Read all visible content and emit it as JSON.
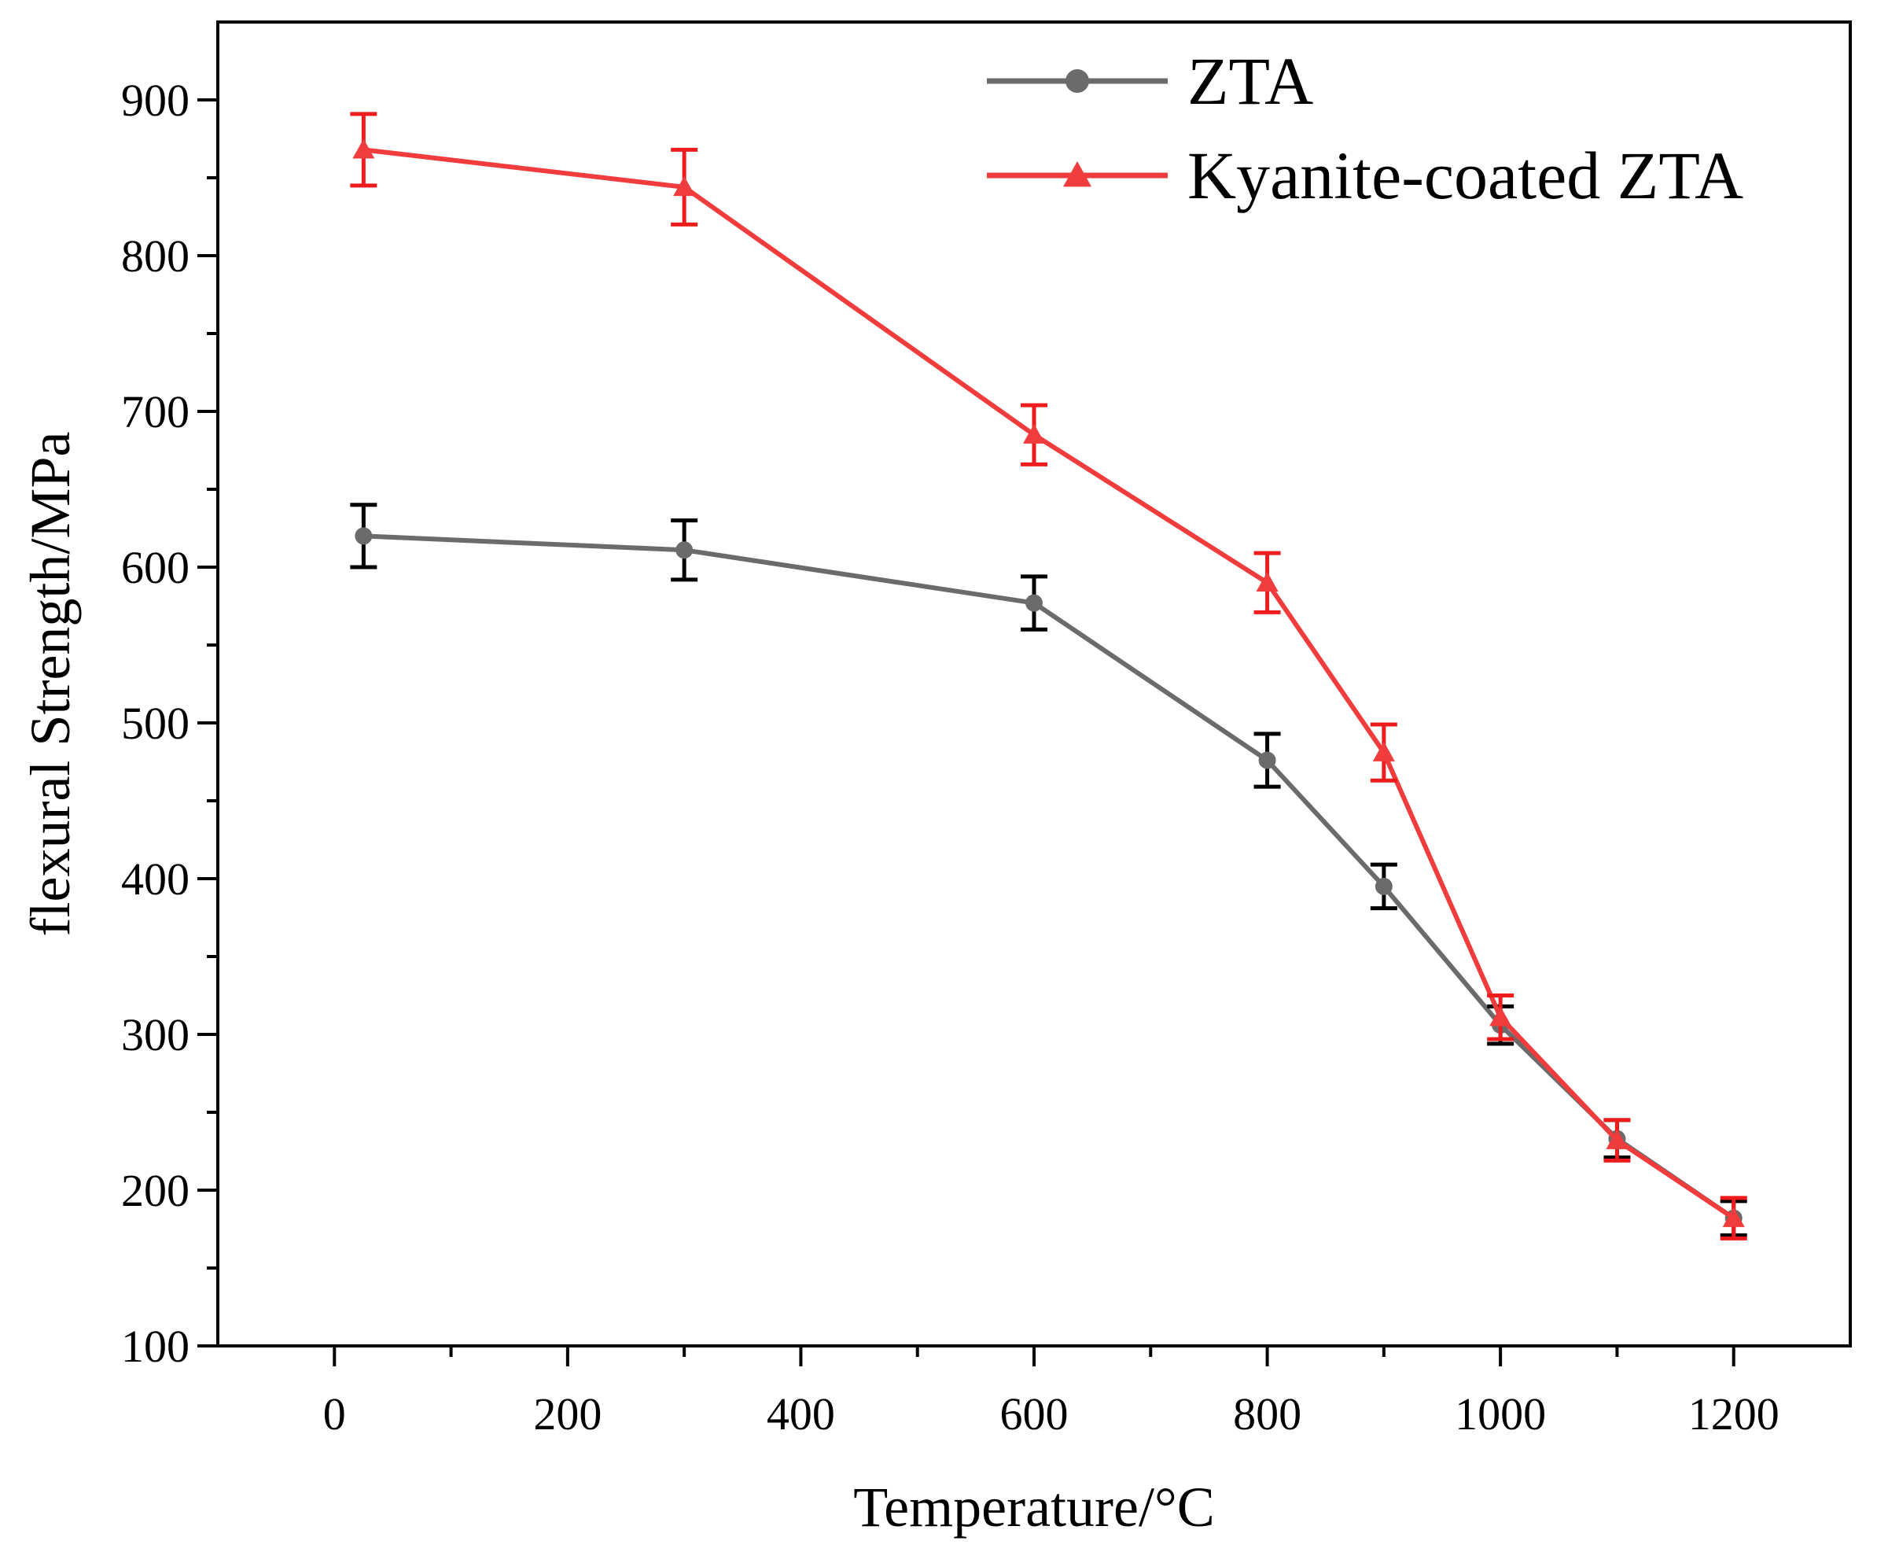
{
  "chart_data": {
    "type": "line",
    "title": "",
    "xlabel": "Temperature/°C",
    "ylabel": "flexural Strength/MPa",
    "xlim": [
      -100,
      1300
    ],
    "ylim": [
      100,
      950
    ],
    "x_ticks": [
      0,
      200,
      400,
      600,
      800,
      1000,
      1200
    ],
    "y_ticks": [
      100,
      200,
      300,
      400,
      500,
      600,
      700,
      800,
      900
    ],
    "grid": false,
    "legend_position": "top-right",
    "series": [
      {
        "name": "ZTA",
        "color": "#6b6b6b",
        "error_color": "#000000",
        "marker": "circle",
        "x": [
          25,
          300,
          600,
          800,
          900,
          1000,
          1100,
          1200
        ],
        "y": [
          620,
          611,
          577,
          476,
          395,
          306,
          233,
          182
        ],
        "error": [
          20,
          19,
          17,
          17,
          14,
          12,
          12,
          11
        ]
      },
      {
        "name": "Kyanite-coated ZTA",
        "color": "#f03c3c",
        "error_color": "#ee1c1c",
        "marker": "triangle",
        "x": [
          25,
          300,
          600,
          800,
          900,
          1000,
          1100,
          1200
        ],
        "y": [
          868,
          844,
          685,
          590,
          481,
          311,
          232,
          182
        ],
        "error": [
          23,
          24,
          19,
          19,
          18,
          14,
          13,
          13
        ]
      }
    ]
  }
}
